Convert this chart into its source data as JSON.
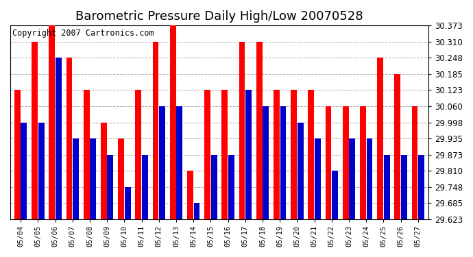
{
  "title": "Barometric Pressure Daily High/Low 20070528",
  "copyright": "Copyright 2007 Cartronics.com",
  "dates": [
    "05/04",
    "05/05",
    "05/06",
    "05/07",
    "05/08",
    "05/09",
    "05/10",
    "05/11",
    "05/12",
    "05/13",
    "05/14",
    "05/15",
    "05/16",
    "05/17",
    "05/18",
    "05/19",
    "05/20",
    "05/21",
    "05/22",
    "05/23",
    "05/24",
    "05/25",
    "05/26",
    "05/27"
  ],
  "highs": [
    30.123,
    30.31,
    30.373,
    30.248,
    30.123,
    29.998,
    29.935,
    30.123,
    30.31,
    30.373,
    29.81,
    30.123,
    30.123,
    30.31,
    30.31,
    30.123,
    30.123,
    30.123,
    30.06,
    30.06,
    30.06,
    30.248,
    30.185,
    30.06
  ],
  "lows": [
    29.998,
    29.998,
    30.248,
    29.935,
    29.935,
    29.873,
    29.748,
    29.873,
    30.06,
    30.06,
    29.685,
    29.873,
    29.873,
    30.123,
    30.06,
    30.06,
    29.998,
    29.935,
    29.81,
    29.935,
    29.935,
    29.873,
    29.873,
    29.873
  ],
  "high_color": "#ff0000",
  "low_color": "#0000cc",
  "background_color": "#ffffff",
  "plot_bg_color": "#ffffff",
  "grid_color": "#aaaaaa",
  "yticks": [
    29.623,
    29.685,
    29.748,
    29.81,
    29.873,
    29.935,
    29.998,
    30.06,
    30.123,
    30.185,
    30.248,
    30.31,
    30.373
  ],
  "ymin": 29.623,
  "ymax": 30.373,
  "title_fontsize": 13,
  "copyright_fontsize": 8.5,
  "bar_width": 0.35,
  "bar_gap": 0.03
}
